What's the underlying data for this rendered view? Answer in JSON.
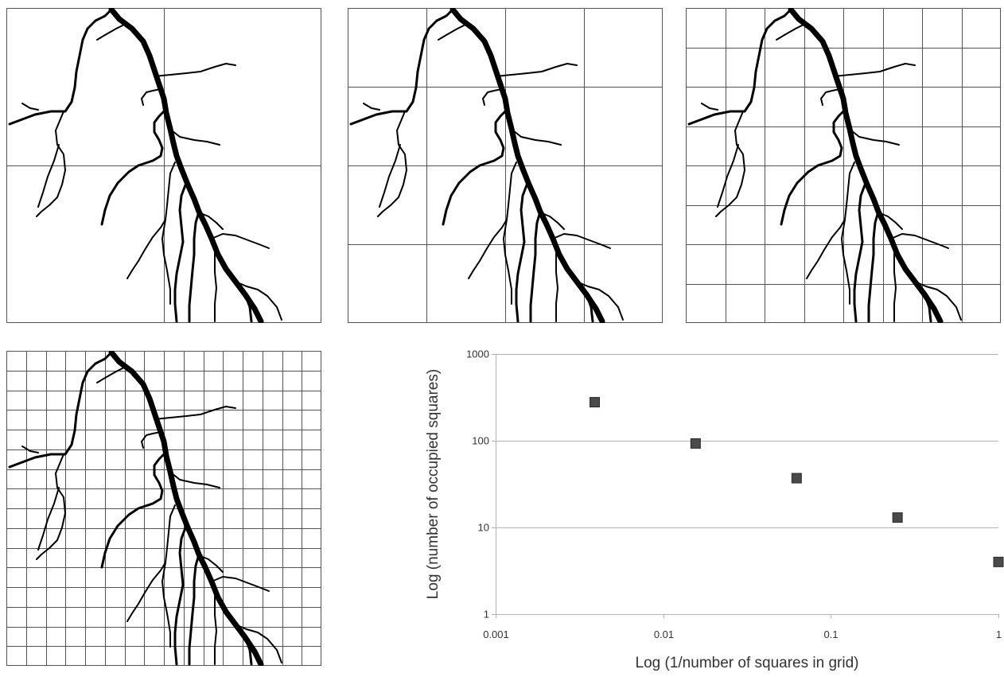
{
  "panels": [
    {
      "grid_divisions": 2
    },
    {
      "grid_divisions": 4
    },
    {
      "grid_divisions": 8
    },
    {
      "grid_divisions": 16
    }
  ],
  "chart_data": {
    "type": "scatter",
    "title": "",
    "xlabel": "Log (1/number of squares in grid)",
    "ylabel": "Log (number of occupied squares)",
    "x_scale": "log",
    "y_scale": "log",
    "xlim": [
      0.001,
      1
    ],
    "ylim": [
      1,
      1000
    ],
    "x_ticks": [
      "0.001",
      "0.01",
      "0.1",
      "1"
    ],
    "y_ticks": [
      "1",
      "10",
      "100",
      "1000"
    ],
    "grid": "horizontal",
    "marker_color": "#4a4a4a",
    "points": [
      {
        "x": 0.0039,
        "y": 278
      },
      {
        "x": 0.0156,
        "y": 93
      },
      {
        "x": 0.0625,
        "y": 37
      },
      {
        "x": 0.25,
        "y": 13
      },
      {
        "x": 1,
        "y": 4
      }
    ]
  }
}
